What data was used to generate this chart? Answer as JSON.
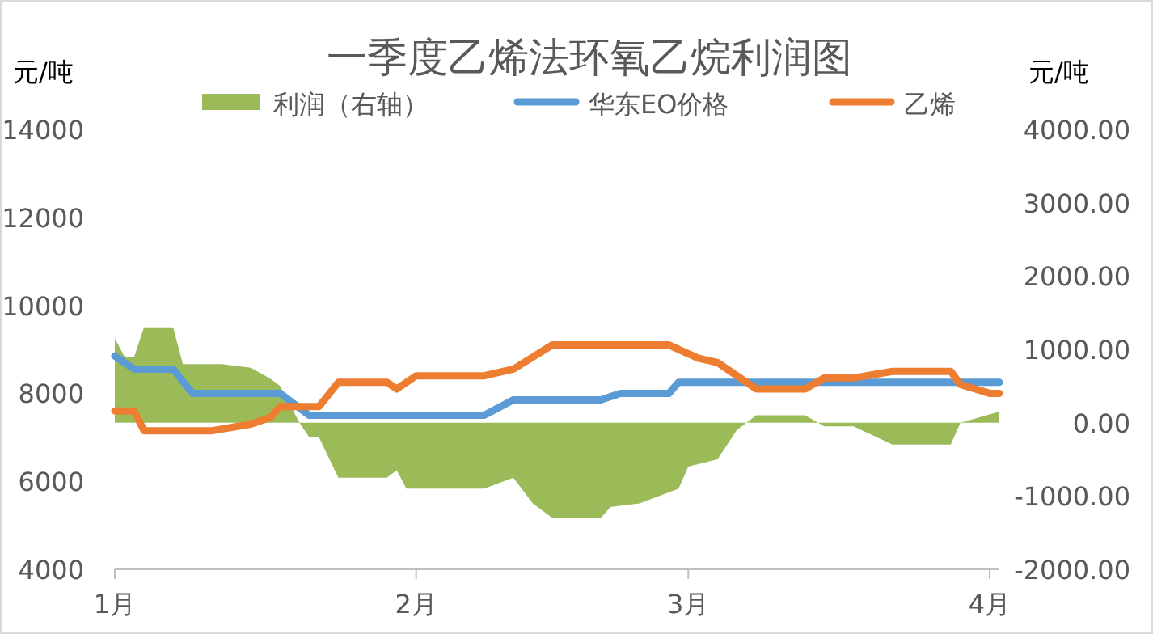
{
  "chart_data": {
    "type": "line",
    "title": "一季度乙烯法环氧乙烷利润图",
    "ylabel": "元/吨",
    "y2label": "元/吨",
    "legend": "top",
    "xlim": [
      "--01-01",
      "--04-02"
    ],
    "xticks": [
      {
        "value": "--01-01",
        "label": "1月"
      },
      {
        "value": "--02-01",
        "label": "2月"
      },
      {
        "value": "--03-01",
        "label": "3月"
      },
      {
        "value": "--04-01",
        "label": "4月"
      }
    ],
    "ylim": [
      4000,
      14000
    ],
    "yticks": [
      4000,
      6000,
      8000,
      10000,
      12000,
      14000
    ],
    "y2lim": [
      -2000,
      4000
    ],
    "y2ticks": [
      {
        "value": -2000,
        "label": "-2000.00"
      },
      {
        "value": -1000,
        "label": "-1000.00"
      },
      {
        "value": 0,
        "label": "0.00"
      },
      {
        "value": 1000,
        "label": "1000.00"
      },
      {
        "value": 2000,
        "label": "2000.00"
      },
      {
        "value": 3000,
        "label": "3000.00"
      },
      {
        "value": 4000,
        "label": "4000.00"
      }
    ],
    "series": [
      {
        "name": "利润（右轴）",
        "type": "area",
        "axis": "y2",
        "color": "#9bbb59",
        "x": [
          "--01-01",
          "--01-02",
          "--01-03",
          "--01-04",
          "--01-07",
          "--01-08",
          "--01-12",
          "--01-15",
          "--01-17",
          "--01-18",
          "--01-20",
          "--01-21",
          "--01-22",
          "--01-24",
          "--01-29",
          "--01-30",
          "--01-31",
          "--02-08",
          "--02-11",
          "--02-13",
          "--02-15",
          "--02-20",
          "--02-21",
          "--02-24",
          "--02-28",
          "--03-01",
          "--03-04",
          "--03-06",
          "--03-08",
          "--03-13",
          "--03-15",
          "--03-18",
          "--03-22",
          "--03-28",
          "--03-29",
          "--04-02"
        ],
        "values": [
          1150,
          900,
          900,
          1300,
          1300,
          800,
          800,
          750,
          600,
          500,
          0,
          -200,
          -200,
          -750,
          -750,
          -650,
          -900,
          -900,
          -750,
          -1100,
          -1300,
          -1300,
          -1150,
          -1100,
          -900,
          -600,
          -500,
          -100,
          100,
          100,
          -50,
          -50,
          -300,
          -300,
          0,
          150
        ]
      },
      {
        "name": "华东EO价格",
        "color": "#5b9bd5",
        "x": [
          "--01-01",
          "--01-03",
          "--01-07",
          "--01-09",
          "--01-18",
          "--01-21",
          "--02-08",
          "--02-11",
          "--02-20",
          "--02-22",
          "--02-27",
          "--02-28",
          "--04-02"
        ],
        "values": [
          8850,
          8550,
          8550,
          8000,
          8000,
          7500,
          7500,
          7850,
          7850,
          8000,
          8000,
          8250,
          8250
        ]
      },
      {
        "name": "乙烯",
        "color": "#ed7d31",
        "x": [
          "--01-01",
          "--01-03",
          "--01-04",
          "--01-11",
          "--01-15",
          "--01-17",
          "--01-18",
          "--01-22",
          "--01-24",
          "--01-29",
          "--01-30",
          "--02-01",
          "--02-08",
          "--02-11",
          "--02-15",
          "--02-27",
          "--03-02",
          "--03-04",
          "--03-08",
          "--03-13",
          "--03-15",
          "--03-18",
          "--03-22",
          "--03-28",
          "--03-29",
          "--04-01",
          "--04-02"
        ],
        "values": [
          7600,
          7600,
          7150,
          7150,
          7300,
          7450,
          7700,
          7700,
          8250,
          8250,
          8100,
          8400,
          8400,
          8550,
          9100,
          9100,
          8800,
          8700,
          8100,
          8100,
          8350,
          8350,
          8500,
          8500,
          8200,
          8000,
          8000
        ]
      }
    ]
  }
}
